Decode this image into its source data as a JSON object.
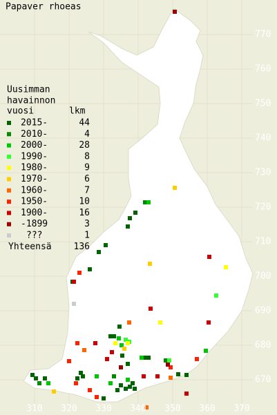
{
  "title": "Papaver rhoeas",
  "legend": {
    "heading": [
      "Uusimman",
      "havainnon",
      "vuosi"
    ],
    "count_heading": "lkm",
    "entries": [
      {
        "label": "2015-",
        "count": 44,
        "color": "#006400",
        "points": [
          [
            337,
            714.4
          ],
          [
            337.6,
            716.8
          ],
          [
            339.2,
            718.4
          ],
          [
            328.6,
            707
          ],
          [
            330.6,
            709
          ],
          [
            326,
            702
          ],
          [
            321,
            698.4
          ],
          [
            334.6,
            685.4
          ],
          [
            332,
            682.6
          ],
          [
            333,
            682.6
          ],
          [
            335.4,
            677
          ],
          [
            342,
            676.4
          ],
          [
            343,
            676.4
          ],
          [
            337,
            674.6
          ],
          [
            338.4,
            669
          ],
          [
            337.6,
            668
          ],
          [
            336.4,
            667.4
          ],
          [
            335,
            668.4
          ],
          [
            334,
            667
          ],
          [
            323.4,
            672
          ],
          [
            324,
            671
          ],
          [
            309.4,
            671.4
          ],
          [
            310.4,
            670.4
          ],
          [
            313,
            670.4
          ],
          [
            322.4,
            670.4
          ],
          [
            351.6,
            671.6
          ],
          [
            354,
            671.4
          ],
          [
            330,
            664.6
          ],
          [
            339,
            667.4
          ]
        ]
      },
      {
        "label": "2010-",
        "count": 4,
        "color": "#008800",
        "points": [
          [
            342,
            721.4
          ],
          [
            348,
            675.6
          ],
          [
            333,
            671
          ],
          [
            311.4,
            669
          ]
        ]
      },
      {
        "label": "2000-",
        "count": 28,
        "color": "#00c800",
        "points": [
          [
            343,
            721.4
          ],
          [
            334.4,
            682
          ],
          [
            335.2,
            680
          ],
          [
            341,
            676.4
          ],
          [
            332,
            669
          ],
          [
            328,
            671
          ],
          [
            314,
            669
          ],
          [
            359.6,
            678.4
          ],
          [
            337,
            670
          ]
        ]
      },
      {
        "label": "1990-",
        "count": 8,
        "color": "#33ff33",
        "points": [
          [
            362.6,
            694.4
          ],
          [
            336.4,
            681.6
          ],
          [
            337.4,
            681
          ],
          [
            349,
            675.6
          ]
        ]
      },
      {
        "label": "1980-",
        "count": 9,
        "color": "#ffff00",
        "points": [
          [
            365.4,
            702.6
          ],
          [
            346.4,
            686.6
          ],
          [
            337,
            680.6
          ],
          [
            333.4,
            680.6
          ]
        ]
      },
      {
        "label": "1970-",
        "count": 6,
        "color": "#ffcc00",
        "points": [
          [
            350.6,
            725.6
          ],
          [
            343.4,
            703.6
          ],
          [
            315.6,
            666.6
          ],
          [
            336,
            679
          ]
        ]
      },
      {
        "label": "1960-",
        "count": 7,
        "color": "#ff6600",
        "points": [
          [
            324.4,
            678.6
          ],
          [
            337.4,
            686.6
          ],
          [
            349.4,
            670.6
          ],
          [
            342.4,
            662
          ]
        ]
      },
      {
        "label": "1950-",
        "count": 10,
        "color": "#ff2200",
        "points": [
          [
            323,
            701
          ],
          [
            322.4,
            680.6
          ],
          [
            349.4,
            673.6
          ],
          [
            357,
            676
          ],
          [
            328,
            665
          ],
          [
            326,
            667
          ],
          [
            322,
            669
          ],
          [
            320,
            675.4
          ]
        ]
      },
      {
        "label": "1900-",
        "count": 16,
        "color": "#cc0000",
        "points": [
          [
            321.4,
            698.4
          ],
          [
            360.4,
            686.6
          ],
          [
            360.6,
            705.6
          ],
          [
            343.6,
            690.6
          ],
          [
            327.6,
            680.6
          ],
          [
            332.4,
            678
          ],
          [
            341.6,
            671
          ],
          [
            345.6,
            671
          ],
          [
            331,
            676
          ],
          [
            354,
            666
          ]
        ]
      },
      {
        "label": "-1899",
        "count": 3,
        "color": "#990000",
        "points": [
          [
            350.6,
            776.6
          ],
          [
            348.6,
            674.4
          ],
          [
            335,
            673.6
          ]
        ]
      },
      {
        "label": "???",
        "count": 1,
        "color": "#cccccc",
        "points": [
          [
            321.4,
            692
          ]
        ]
      }
    ],
    "total_label": "Yhteensä",
    "total": 136
  },
  "xticks": [
    310,
    320,
    330,
    340,
    350,
    360,
    370
  ],
  "yticks": [
    670,
    680,
    690,
    700,
    710,
    720,
    730,
    740,
    750,
    760,
    770
  ]
}
